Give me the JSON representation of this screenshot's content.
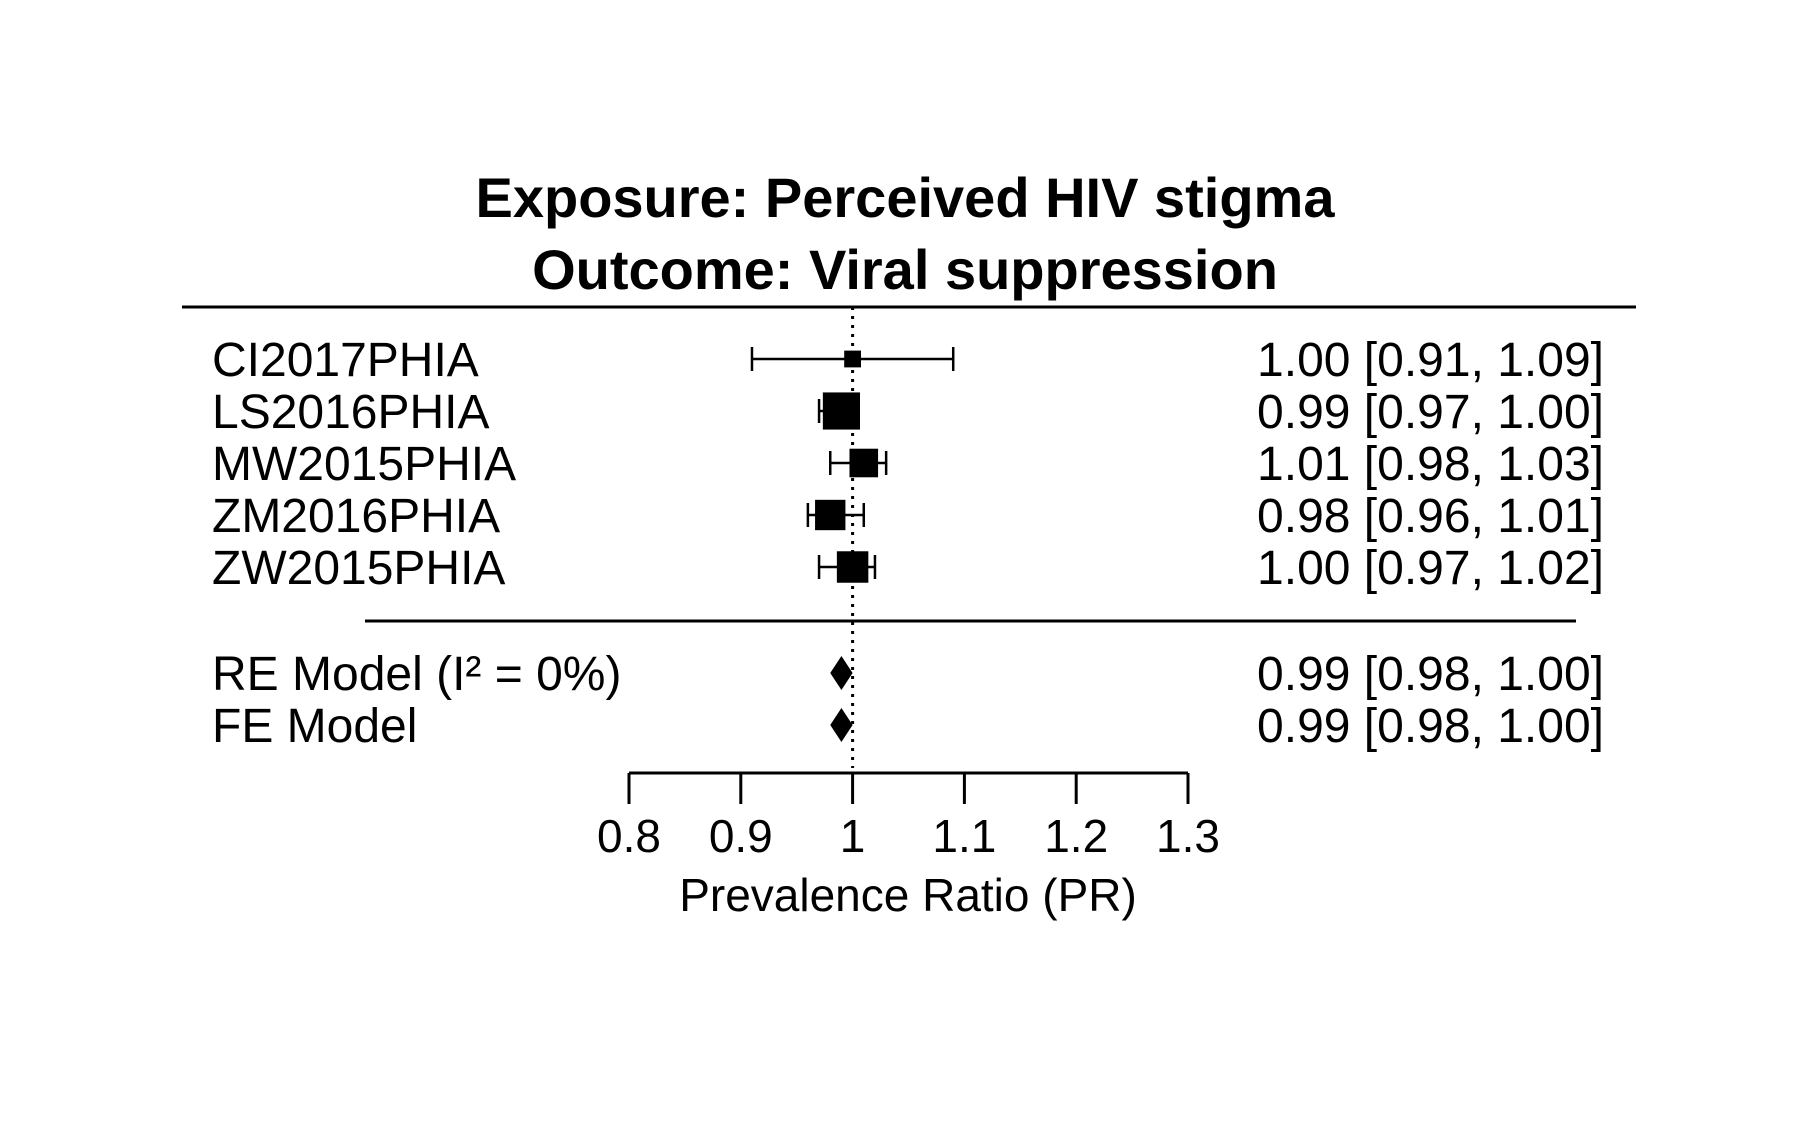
{
  "chart_data": {
    "type": "forest",
    "title_lines": [
      "Exposure: Perceived HIV stigma",
      "Outcome: Viral suppression"
    ],
    "xlabel": "Prevalence Ratio (PR)",
    "xlim": [
      0.8,
      1.3
    ],
    "xticks": [
      0.8,
      0.9,
      1.0,
      1.1,
      1.2,
      1.3
    ],
    "xtick_labels": [
      "0.8",
      "0.9",
      "1",
      "1.1",
      "1.2",
      "1.3"
    ],
    "reference_line": 1.0,
    "studies": [
      {
        "label": "CI2017PHIA",
        "estimate": 1.0,
        "lower": 0.91,
        "upper": 1.09,
        "ci_text": "1.00 [0.91, 1.09]",
        "weight": 0.02
      },
      {
        "label": "LS2016PHIA",
        "estimate": 0.99,
        "lower": 0.97,
        "upper": 1.0,
        "ci_text": "0.99 [0.97, 1.00]",
        "weight": 0.32
      },
      {
        "label": "MW2015PHIA",
        "estimate": 1.01,
        "lower": 0.98,
        "upper": 1.03,
        "ci_text": "1.01 [0.98, 1.03]",
        "weight": 0.15
      },
      {
        "label": "ZM2016PHIA",
        "estimate": 0.98,
        "lower": 0.96,
        "upper": 1.01,
        "ci_text": "0.98 [0.96, 1.01]",
        "weight": 0.18
      },
      {
        "label": "ZW2015PHIA",
        "estimate": 1.0,
        "lower": 0.97,
        "upper": 1.02,
        "ci_text": "1.00 [0.97, 1.02]",
        "weight": 0.2
      }
    ],
    "summary": [
      {
        "label": "RE Model   (I² = 0%)",
        "estimate": 0.99,
        "lower": 0.98,
        "upper": 1.0,
        "ci_text": "0.99 [0.98, 1.00]"
      },
      {
        "label": "FE Model",
        "estimate": 0.99,
        "lower": 0.98,
        "upper": 1.0,
        "ci_text": "0.99 [0.98, 1.00]"
      }
    ]
  }
}
